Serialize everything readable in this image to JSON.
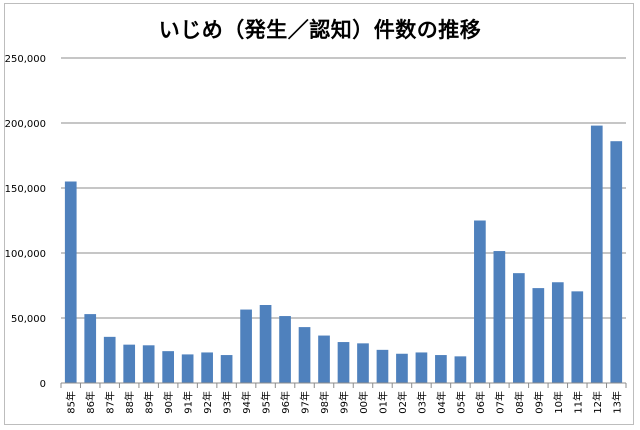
{
  "chart_data": {
    "type": "bar",
    "title": "いじめ（発生／認知）件数の推移",
    "xlabel": "",
    "ylabel": "",
    "ylim": [
      0,
      250000
    ],
    "yticks": [
      0,
      50000,
      100000,
      150000,
      200000,
      250000
    ],
    "ytick_labels": [
      "0",
      "50,000",
      "100,000",
      "150,000",
      "200,000",
      "250,000"
    ],
    "grid": true,
    "legend": "none",
    "bar_color": "#4f81bd",
    "categories": [
      "85年",
      "86年",
      "87年",
      "88年",
      "89年",
      "90年",
      "91年",
      "92年",
      "93年",
      "94年",
      "95年",
      "96年",
      "97年",
      "98年",
      "99年",
      "00年",
      "01年",
      "02年",
      "03年",
      "04年",
      "05年",
      "06年",
      "07年",
      "08年",
      "09年",
      "10年",
      "11年",
      "12年",
      "13年"
    ],
    "values": [
      155000,
      53000,
      35500,
      29500,
      29000,
      24500,
      22000,
      23500,
      21500,
      56500,
      60000,
      51500,
      43000,
      36500,
      31500,
      30500,
      25500,
      22500,
      23500,
      21500,
      20500,
      125000,
      101500,
      84500,
      73000,
      77500,
      70500,
      198000,
      186000
    ]
  }
}
